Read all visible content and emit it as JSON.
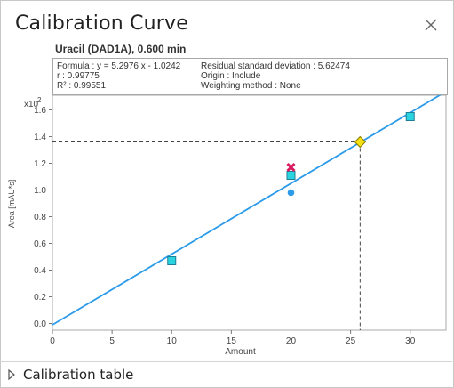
{
  "window": {
    "title": "Calibration Curve",
    "close_icon": "close-icon"
  },
  "compound_label": "Uracil (DAD1A), 0.600 min",
  "info": {
    "formula": "Formula : y = 5.2976 x - 1.0242",
    "r": "r : 0.99775",
    "r2": "R² : 0.99551",
    "residual": "Residual standard deviation : 5.62474",
    "origin": "Origin : Include",
    "weighting": "Weighting method : None"
  },
  "chart_data": {
    "type": "scatter",
    "xlabel": "Amount",
    "ylabel": "Area [mAU*s]",
    "y_multiplier": "x10",
    "y_multiplier_exp": "2",
    "xlim": [
      0,
      33
    ],
    "ylim": [
      -0.05,
      1.71
    ],
    "x_ticks": [
      "0",
      "5",
      "10",
      "15",
      "20",
      "25",
      "30"
    ],
    "x_tick_values": [
      0,
      5,
      10,
      15,
      20,
      25,
      30
    ],
    "y_ticks": [
      "0.0",
      "0.2",
      "0.4",
      "0.6",
      "0.8",
      "1.0",
      "1.2",
      "1.4",
      "1.6"
    ],
    "y_tick_values": [
      0,
      0.2,
      0.4,
      0.6,
      0.8,
      1.0,
      1.2,
      1.4,
      1.6
    ],
    "fit_line": {
      "slope": 0.052976,
      "intercept": -0.010242,
      "x_range": [
        0,
        33
      ],
      "color": "#2b9bea"
    },
    "calibration_points": [
      {
        "x": 10,
        "y": 0.47
      },
      {
        "x": 20,
        "y": 1.11
      },
      {
        "x": 30,
        "y": 1.55
      }
    ],
    "excluded_point": {
      "x": 20,
      "y": 0.98
    },
    "outlier_point": {
      "x": 20,
      "y": 1.17
    },
    "current_sample": {
      "x": 25.8,
      "y": 1.36
    },
    "colors": {
      "calibration_point": "#29d3e0",
      "excluded_point": "#2b9bea",
      "outlier_point": "#d81b60",
      "current_sample": "#f4e013"
    },
    "grid": false
  },
  "footer": {
    "expander_icon": "triangle-right-icon",
    "calibration_table_label": "Calibration table"
  }
}
